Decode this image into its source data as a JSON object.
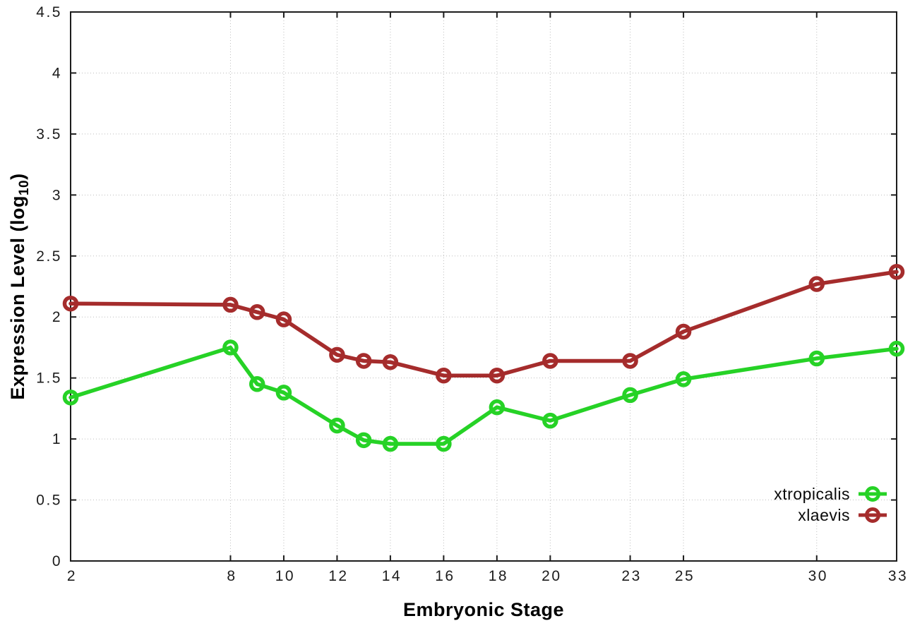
{
  "chart_data": {
    "type": "line",
    "title": "",
    "xlabel": "Embryonic Stage",
    "ylabel": "Expression Level (log10)",
    "ylabel_parts": {
      "pre": "Expression Level (log",
      "sub": "10",
      "post": ")"
    },
    "x": [
      2,
      8,
      9,
      10,
      12,
      13,
      14,
      16,
      18,
      20,
      23,
      25,
      30,
      33
    ],
    "series": [
      {
        "name": "xtropicalis",
        "color": "#26d226",
        "values": [
          1.34,
          1.75,
          1.45,
          1.38,
          1.11,
          0.99,
          0.96,
          0.96,
          1.26,
          1.15,
          1.36,
          1.49,
          1.66,
          1.74
        ]
      },
      {
        "name": "xlaevis",
        "color": "#a52c2c",
        "values": [
          2.11,
          2.1,
          2.04,
          1.98,
          1.69,
          1.64,
          1.63,
          1.52,
          1.52,
          1.64,
          1.64,
          1.88,
          2.27,
          2.37
        ]
      }
    ],
    "xlim": [
      2,
      33
    ],
    "ylim": [
      0,
      4.5
    ],
    "xticks": [
      2,
      8,
      10,
      12,
      14,
      16,
      18,
      20,
      23,
      25,
      30,
      33
    ],
    "yticks": [
      "0",
      "0.5",
      "1",
      "1.5",
      "2",
      "2.5",
      "3",
      "3.5",
      "4",
      "4.5"
    ],
    "grid": true,
    "legend_position": "bottom-right"
  },
  "styles": {
    "background": "#ffffff",
    "grid_color": "#bdbdbd",
    "axis_color": "#1c1c1c",
    "text_color": "#000000"
  }
}
